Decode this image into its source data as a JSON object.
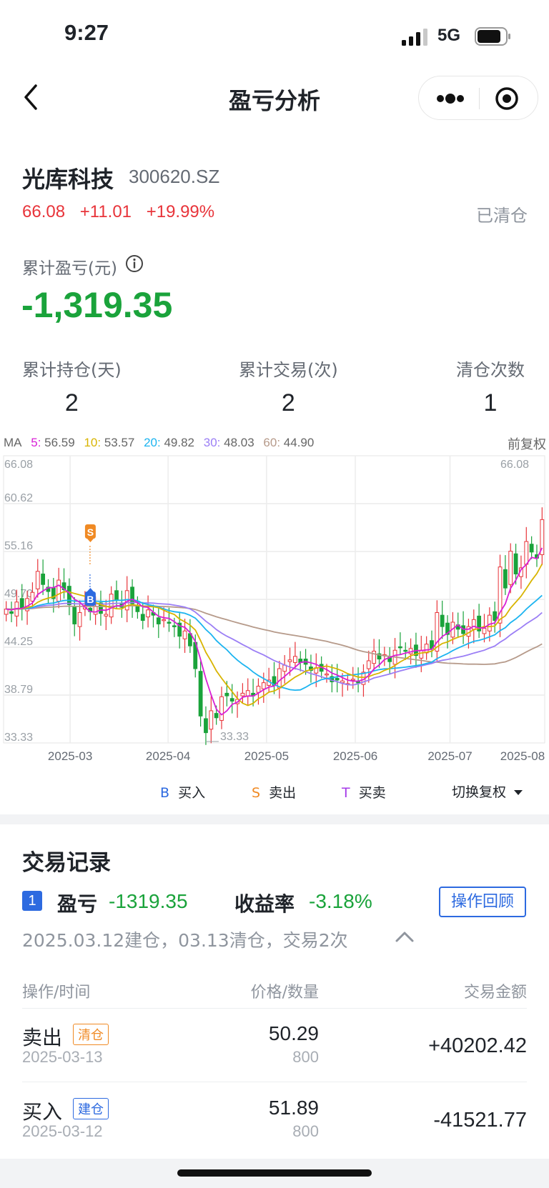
{
  "status": {
    "time": "9:27",
    "network": "5G"
  },
  "nav": {
    "title": "盈亏分析"
  },
  "stock": {
    "name": "光库科技",
    "code": "300620.SZ",
    "price": "66.08",
    "change": "+11.01",
    "change_pct": "+19.99%",
    "state": "已清仓"
  },
  "summary": {
    "cum_pl_label": "累计盈亏(元)",
    "cum_pl_value": "-1,319.35",
    "stats": [
      {
        "label": "累计持仓(天)",
        "value": "2"
      },
      {
        "label": "累计交易(次)",
        "value": "2"
      },
      {
        "label": "清仓次数",
        "value": "1"
      }
    ]
  },
  "ma": {
    "title": "MA",
    "items": [
      {
        "key": "5:",
        "value": "56.59",
        "color": "#d81fd6"
      },
      {
        "key": "10:",
        "value": "53.57",
        "color": "#d8b400"
      },
      {
        "key": "20:",
        "value": "49.82",
        "color": "#1cb4f0"
      },
      {
        "key": "30:",
        "value": "48.03",
        "color": "#9b7ef5"
      },
      {
        "key": "60:",
        "value": "44.90",
        "color": "#b69a8a"
      }
    ],
    "adjust_label": "前复权"
  },
  "chart_data": {
    "type": "candlestick",
    "y_ticks": [
      "66.08",
      "60.62",
      "55.16",
      "49.70",
      "44.25",
      "38.79",
      "33.33"
    ],
    "ylim": [
      33.33,
      66.08
    ],
    "x_ticks": [
      "2025-03",
      "2025-04",
      "2025-05",
      "2025-06",
      "2025-07",
      "2025-08"
    ],
    "max_label": "66.08",
    "min_label": "33.33",
    "markers": [
      {
        "type": "S",
        "label": "S",
        "color": "#f08a24"
      },
      {
        "type": "B",
        "label": "B",
        "color": "#2d6ae0"
      }
    ],
    "closes": [
      48.6,
      48.1,
      49.4,
      48.7,
      49.8,
      50.5,
      52.9,
      51.4,
      50.6,
      49.8,
      51.9,
      50.8,
      49.1,
      46.9,
      48.2,
      49.0,
      48.3,
      48.9,
      48.1,
      48.0,
      50.3,
      49.6,
      48.8,
      50.7,
      49.2,
      48.3,
      47.3,
      48.5,
      47.9,
      46.9,
      47.4,
      47.0,
      46.6,
      45.5,
      46.1,
      44.4,
      41.8,
      36.4,
      34.5,
      37.0,
      36.2,
      38.6,
      38.7,
      38.1,
      38.3,
      39.0,
      39.3,
      38.7,
      39.8,
      40.2,
      40.5,
      39.9,
      41.8,
      42.2,
      42.8,
      43.2,
      42.5,
      42.3,
      41.6,
      41.9,
      41.5,
      41.2,
      40.3,
      40.5,
      40.4,
      40.1,
      40.6,
      40.3,
      41.4,
      42.7,
      43.8,
      42.9,
      43.4,
      42.6,
      43.9,
      44.2,
      43.8,
      44.1,
      43.3,
      43.9,
      44.6,
      44.1,
      48.2,
      46.6,
      45.7,
      47.1,
      46.3,
      45.8,
      46.6,
      47.4,
      46.1,
      46.4,
      47.9,
      47.3,
      53.4,
      51.0,
      55.2,
      52.6,
      53.3,
      56.3,
      55.1,
      54.4,
      58.8
    ],
    "ma_series": [
      "MA5",
      "MA10",
      "MA20",
      "MA30",
      "MA60"
    ]
  },
  "legend": [
    {
      "key": "B",
      "label": "买入",
      "color": "#2d6ae0"
    },
    {
      "key": "S",
      "label": "卖出",
      "color": "#f08a24"
    },
    {
      "key": "T",
      "label": "买卖",
      "color": "#a53ae8"
    }
  ],
  "switch_adjust": "切换复权",
  "records": {
    "title": "交易记录",
    "index": "1",
    "pl_label": "盈亏",
    "pl_value": "-1319.35",
    "return_label": "收益率",
    "return_value": "-3.18%",
    "review_button": "操作回顾",
    "summary_text": "2025.03.12建仓，03.13清仓，交易2次",
    "headers": [
      "操作/时间",
      "价格/数量",
      "交易金额"
    ],
    "rows": [
      {
        "op": "卖出",
        "tag": "清仓",
        "tag_color": "#f08a24",
        "date": "2025-03-13",
        "price": "50.29",
        "qty": "800",
        "amount": "+40202.42"
      },
      {
        "op": "买入",
        "tag": "建仓",
        "tag_color": "#2d6ae0",
        "date": "2025-03-12",
        "price": "51.89",
        "qty": "800",
        "amount": "-41521.77"
      }
    ]
  }
}
